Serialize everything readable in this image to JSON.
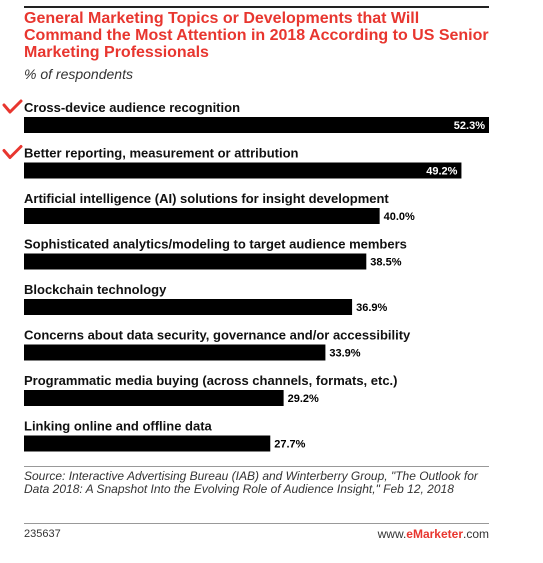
{
  "chart_data": {
    "type": "bar",
    "title": "General Marketing Topics or Developments that Will Command the Most Attention in 2018 According to US Senior Marketing Professionals",
    "subtitle": "% of respondents",
    "categories": [
      "Cross-device audience recognition",
      "Better reporting, measurement or attribution",
      "Artificial intelligence (AI) solutions for insight development",
      "Sophisticated analytics/modeling to target audience members",
      "Blockchain technology",
      "Concerns about data security, governance and/or accessibility",
      "Programmatic media buying (across channels, formats, etc.)",
      "Linking online and offline data"
    ],
    "values": [
      52.3,
      49.2,
      40.0,
      38.5,
      36.9,
      33.9,
      29.2,
      27.7
    ],
    "value_labels": [
      "52.3%",
      "49.2%",
      "40.0%",
      "38.5%",
      "36.9%",
      "33.9%",
      "29.2%",
      "27.7%"
    ],
    "checkmarked": [
      true,
      true,
      false,
      false,
      false,
      false,
      false,
      false
    ],
    "orientation": "horizontal",
    "xlim": [
      0,
      52.3
    ],
    "bar_color": "#000000",
    "label_color_inside": "#ffffff",
    "label_color_outside": "#000000",
    "checkmark_color": "#e8362f"
  },
  "footer": {
    "source": "Source: Interactive Advertising Bureau (IAB) and Winterberry Group, \"The Outlook for Data 2018: A Snapshot Into the Evolving Role of Audience Insight,\" Feb 12, 2018",
    "chart_id": "235637",
    "brand_prefix": "www.",
    "brand_accent": "eMarketer",
    "brand_suffix": ".com"
  }
}
